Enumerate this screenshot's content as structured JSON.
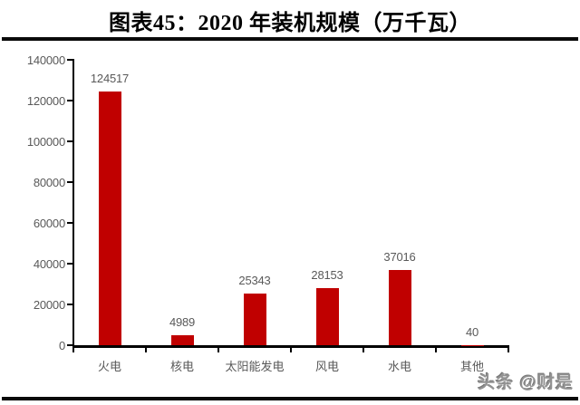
{
  "page": {
    "title": "图表45：2020 年装机规模（万千瓦）",
    "watermark": "头条 @财是"
  },
  "colors": {
    "bar": "#c00000",
    "axis": "#000000",
    "tick_label": "#595959",
    "title_text": "#000000",
    "watermark_text": "#929292"
  },
  "chart_data": {
    "type": "bar",
    "title": "图表45：2020 年装机规模（万千瓦）",
    "categories": [
      "火电",
      "核电",
      "太阳能发电",
      "风电",
      "水电",
      "其他"
    ],
    "values": [
      124517,
      4989,
      25343,
      28153,
      37016,
      40
    ],
    "data_labels": [
      "124517",
      "4989",
      "25343",
      "28153",
      "37016",
      "40"
    ],
    "xlabel": "",
    "ylabel": "",
    "ylim": [
      0,
      140000
    ],
    "ytick_step": 20000,
    "yticks": [
      0,
      20000,
      40000,
      60000,
      80000,
      100000,
      120000,
      140000
    ],
    "grid": false,
    "legend": false,
    "bar_color": "#c00000",
    "data_label_position": "above-bar"
  }
}
